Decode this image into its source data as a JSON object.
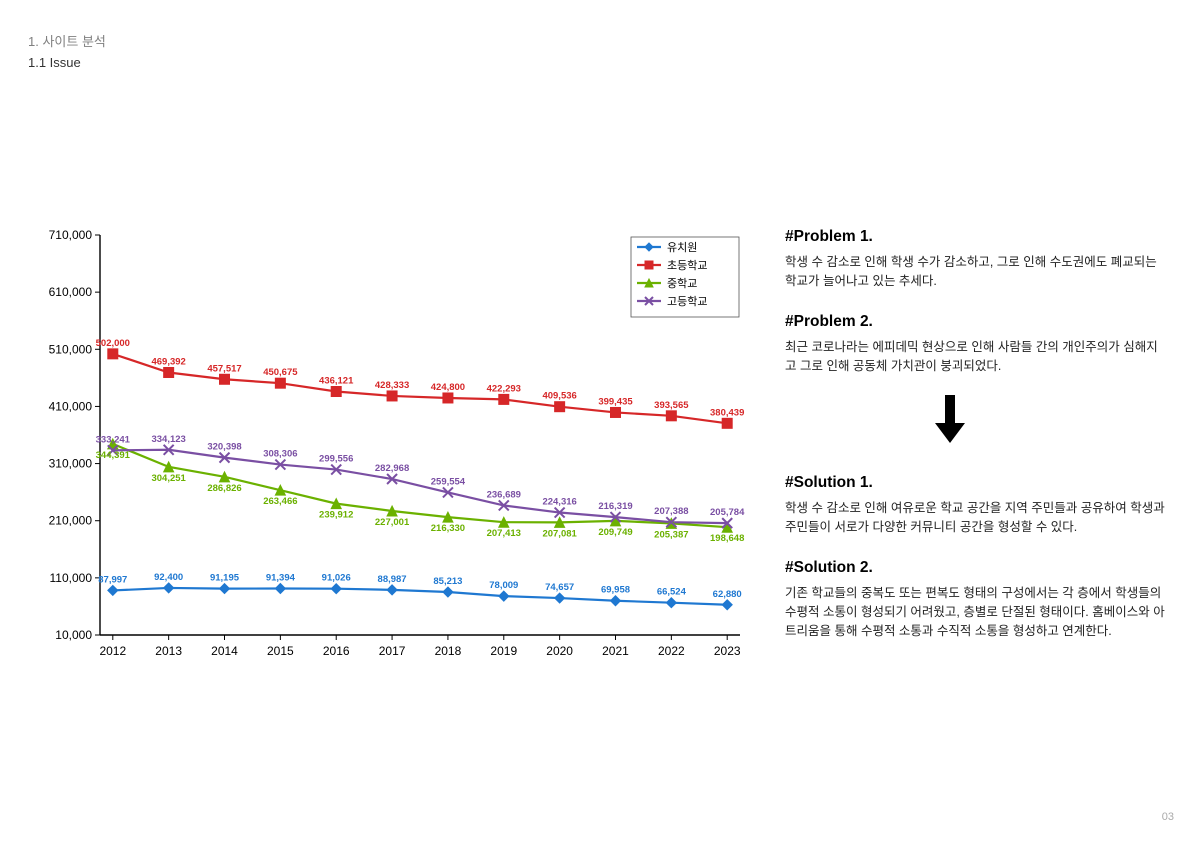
{
  "header": {
    "breadcrumb": "1. 사이트 분석",
    "subtitle": "1.1 Issue"
  },
  "pageNumber": "03",
  "chart": {
    "type": "line",
    "years": [
      "2012",
      "2013",
      "2014",
      "2015",
      "2016",
      "2017",
      "2018",
      "2019",
      "2020",
      "2021",
      "2022",
      "2023"
    ],
    "ylim": [
      10000,
      710000
    ],
    "ytick_step": 100000,
    "ytick_labels": [
      "10,000",
      "110,000",
      "210,000",
      "310,000",
      "410,000",
      "510,000",
      "610,000",
      "710,000"
    ],
    "background_color": "#ffffff",
    "axis_color": "#000000",
    "axis_fontsize": 12,
    "datalabel_fontsize": 9.5,
    "line_width": 2.2,
    "marker_size": 5,
    "legend": {
      "position": "top-right",
      "border_color": "#555555",
      "fontsize": 11
    },
    "series": [
      {
        "name": "유치원",
        "color": "#1f78d1",
        "marker": "diamond",
        "values": [
          87997,
          92400,
          91195,
          91394,
          91026,
          88987,
          85213,
          78009,
          74657,
          69958,
          66524,
          62880
        ],
        "labels": [
          "87,997",
          "92,400",
          "91,195",
          "91,394",
          "91,026",
          "88,987",
          "85,213",
          "78,009",
          "74,657",
          "69,958",
          "66,524",
          "62,880"
        ],
        "label_color": "#1f78d1"
      },
      {
        "name": "초등학교",
        "color": "#d62728",
        "marker": "square",
        "values": [
          502000,
          469392,
          457517,
          450675,
          436121,
          428333,
          424800,
          422293,
          409536,
          399435,
          393565,
          380439
        ],
        "labels": [
          "502,000",
          "469,392",
          "457,517",
          "450,675",
          "436,121",
          "428,333",
          "424,800",
          "422,293",
          "409,536",
          "399,435",
          "393,565",
          "380,439"
        ],
        "label_color": "#d62728"
      },
      {
        "name": "중학교",
        "color": "#6bb100",
        "marker": "triangle",
        "values": [
          344391,
          304251,
          286826,
          263466,
          239912,
          227001,
          216330,
          207413,
          207081,
          209749,
          205387,
          198648
        ],
        "labels": [
          "344,391",
          "304,251",
          "286,826",
          "263,466",
          "239,912",
          "227,001",
          "216,330",
          "207,413",
          "207,081",
          "209,749",
          "205,387",
          "198,648"
        ],
        "label_color": "#6bb100"
      },
      {
        "name": "고등학교",
        "color": "#7a4fa3",
        "marker": "x",
        "values": [
          333241,
          334123,
          320398,
          308306,
          299556,
          282968,
          259554,
          236689,
          224316,
          216319,
          207388,
          205784
        ],
        "labels": [
          "333,241",
          "334,123",
          "320,398",
          "308,306",
          "299,556",
          "282,968",
          "259,554",
          "236,689",
          "224,316",
          "216,319",
          "207,388",
          "205,784"
        ],
        "label_color": "#7a4fa3"
      }
    ]
  },
  "text": {
    "problem1": {
      "title": "#Problem 1.",
      "body": "학생 수 감소로 인해 학생 수가 감소하고, 그로 인해 수도권에도 폐교되는 학교가  늘어나고 있는 추세다."
    },
    "problem2": {
      "title": "#Problem 2.",
      "body": "최근 코로나라는 에피데믹 현상으로 인해 사람들 간의 개인주의가 심해지고 그로 인해 공동체 가치관이 붕괴되었다."
    },
    "solution1": {
      "title": "#Solution 1.",
      "body": "학생 수 감소로 인해 여유로운 학교 공간을 지역 주민들과 공유하여 학생과 주민들이 서로가 다양한 커뮤니티 공간을 형성할 수 있다."
    },
    "solution2": {
      "title": "#Solution 2.",
      "body": "기존 학교들의 중복도 또는 편복도 형태의 구성에서는 각 층에서 학생들의 수평적 소통이 형성되기 어려웠고, 층별로 단절된 형태이다. 홈베이스와 아트리움을 통해 수평적 소통과 수직적 소통을 형성하고 연계한다."
    }
  }
}
